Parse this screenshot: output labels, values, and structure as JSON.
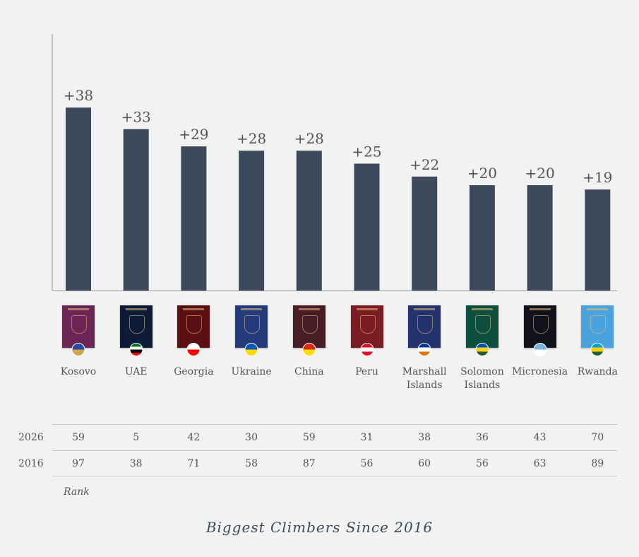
{
  "chart_data": {
    "type": "bar",
    "title": "Biggest Climbers Since 2016",
    "categories": [
      "Kosovo",
      "UAE",
      "Georgia",
      "Ukraine",
      "China",
      "Peru",
      "Marshall Islands",
      "Solomon Islands",
      "Micronesia",
      "Rwanda"
    ],
    "values": [
      38,
      33,
      29,
      28,
      28,
      25,
      22,
      20,
      20,
      19
    ],
    "value_labels": [
      "+38",
      "+33",
      "+29",
      "+28",
      "+28",
      "+25",
      "+22",
      "+20",
      "+20",
      "+19"
    ],
    "bar_color": "#3d4a5c",
    "grid": false,
    "table": {
      "header": "Rank",
      "rows": [
        {
          "label": "2026",
          "values": [
            "59",
            "5",
            "42",
            "30",
            "59",
            "31",
            "38",
            "36",
            "43",
            "70"
          ]
        },
        {
          "label": "2016",
          "values": [
            "97",
            "38",
            "71",
            "58",
            "87",
            "56",
            "60",
            "56",
            "63",
            "89"
          ]
        }
      ]
    },
    "passport_colors": [
      "#6b2656",
      "#0d1a38",
      "#5a0f12",
      "#243a7a",
      "#4a1c28",
      "#7a1c24",
      "#24336e",
      "#0f4f3e",
      "#12121c",
      "#4aa3dc"
    ],
    "flag_colors": [
      [
        "#244aa5",
        "#d0a650"
      ],
      [
        "#00732f",
        "#ffffff",
        "#000000",
        "#ff0000"
      ],
      [
        "#ffffff",
        "#ff0000"
      ],
      [
        "#0057b7",
        "#ffd700"
      ],
      [
        "#de2910",
        "#ffde00"
      ],
      [
        "#d91023",
        "#ffffff",
        "#d91023"
      ],
      [
        "#003893",
        "#ffffff",
        "#dd7500"
      ],
      [
        "#0051ba",
        "#fcd116",
        "#215b33"
      ],
      [
        "#75b2dd",
        "#ffffff"
      ],
      [
        "#00a1de",
        "#fad201",
        "#20603d"
      ]
    ]
  }
}
